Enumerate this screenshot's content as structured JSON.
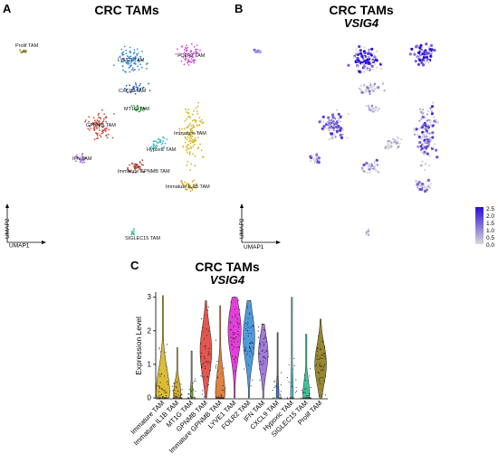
{
  "panels": {
    "A": {
      "letter": "A",
      "title": "CRC TAMs",
      "axis_x": "UMAP1",
      "axis_y": "UMAP2",
      "clusters": [
        {
          "name": "Prolif TAM",
          "color": "#8b7a1a"
        },
        {
          "name": "LYVE1 TAM",
          "color": "#3b8fd6"
        },
        {
          "name": "FOLR2 TAM",
          "color": "#d056d6"
        },
        {
          "name": "CXCL9 TAM",
          "color": "#2b63b5"
        },
        {
          "name": "MT1G TAM",
          "color": "#2bb03a"
        },
        {
          "name": "GPNMB TAM",
          "color": "#cf4a3f"
        },
        {
          "name": "Immature TAM",
          "color": "#d7b520"
        },
        {
          "name": "Hypoxic TAM",
          "color": "#3fb8c7"
        },
        {
          "name": "IFN TAM",
          "color": "#9a6cd8"
        },
        {
          "name": "Immature GPNMB TAM",
          "color": "#a8412f"
        },
        {
          "name": "Immature IL1B TAM",
          "color": "#d0a51a"
        },
        {
          "name": "SIGLEC15 TAM",
          "color": "#2bbd8e"
        }
      ]
    },
    "B": {
      "letter": "B",
      "title": "CRC TAMs",
      "subtitle": "VSIG4",
      "axis_x": "UMAP1",
      "axis_y": "UMAP2",
      "colorbar_ticks": [
        "2.5",
        "2.0",
        "1.5",
        "1.0",
        "0.5",
        "0.0"
      ],
      "colors": {
        "low": "#d9d9d9",
        "high": "#2a0bd9"
      }
    },
    "C": {
      "letter": "C",
      "title": "CRC TAMs",
      "subtitle": "VSIG4"
    }
  },
  "chart_data": [
    {
      "type": "scatter",
      "panel": "A",
      "title": "CRC TAMs",
      "xlabel": "UMAP1",
      "ylabel": "UMAP2",
      "series": [
        {
          "name": "Prolif TAM",
          "x": [
            -13.5,
            -13,
            -12.4,
            -12,
            -13.2
          ],
          "y": [
            9.2,
            9.6,
            9.1,
            9.4,
            8.8
          ]
        },
        {
          "name": "LYVE1 TAM",
          "x": [
            -3.5,
            -2.8,
            -2,
            -1.2,
            -3.2
          ],
          "y": [
            9,
            9.8,
            8.6,
            9.3,
            7.9
          ]
        },
        {
          "name": "FOLR2 TAM",
          "x": [
            0.5,
            1.2,
            2,
            2.4,
            1.5
          ],
          "y": [
            9.5,
            10.2,
            9,
            9.6,
            8.4
          ]
        },
        {
          "name": "CXCL9 TAM",
          "x": [
            -2.5,
            -1.8,
            -1,
            -2.2
          ],
          "y": [
            6.5,
            7.1,
            6.3,
            5.9
          ]
        },
        {
          "name": "MT1G TAM",
          "x": [
            -2.6,
            -2,
            -1.5
          ],
          "y": [
            4.6,
            5.1,
            4.3
          ]
        },
        {
          "name": "GPNMB TAM",
          "x": [
            -6,
            -5.3,
            -4.6,
            -5.6,
            -4.9
          ],
          "y": [
            3.4,
            4.2,
            2.8,
            1.8,
            3.6
          ]
        },
        {
          "name": "Immature TAM",
          "x": [
            1.5,
            2.2,
            3,
            2.6,
            1.8
          ],
          "y": [
            5,
            3.2,
            2,
            0.5,
            -0.8
          ]
        },
        {
          "name": "Hypoxic TAM",
          "x": [
            -1.2,
            -0.4,
            0.2
          ],
          "y": [
            2.2,
            1.6,
            2.6
          ]
        },
        {
          "name": "IFN TAM",
          "x": [
            -6.2,
            -5.7
          ],
          "y": [
            0.8,
            1.3
          ]
        },
        {
          "name": "Immature GPNMB TAM",
          "x": [
            -3.2,
            -2.4,
            -1.8
          ],
          "y": [
            0.2,
            -0.4,
            0.5
          ]
        },
        {
          "name": "Immature IL1B TAM",
          "x": [
            1.2,
            1.8,
            2.3
          ],
          "y": [
            -1.5,
            -2.2,
            -1.2
          ]
        },
        {
          "name": "SIGLEC15 TAM",
          "x": [
            -1.2,
            -1
          ],
          "y": [
            -7.5,
            -8
          ]
        }
      ]
    },
    {
      "type": "scatter",
      "panel": "B",
      "title": "CRC TAMs",
      "subtitle": "VSIG4",
      "xlabel": "UMAP1",
      "ylabel": "UMAP2",
      "color_scale": {
        "min": 0.0,
        "max": 2.5,
        "ticks": [
          0.0,
          0.5,
          1.0,
          1.5,
          2.0,
          2.5
        ]
      }
    },
    {
      "type": "violin",
      "panel": "C",
      "title": "CRC TAMs",
      "subtitle": "VSIG4",
      "ylabel": "Expression Level",
      "ylim": [
        0,
        3.1
      ],
      "yticks": [
        0,
        1,
        2,
        3
      ],
      "categories": [
        "Immature TAM",
        "Immature IL1B TAM",
        "MT1G TAM",
        "GPNMB TAM",
        "Immature GPNMB TAM",
        "LYVE1 TAM",
        "FOLR2 TAM",
        "IFN TAM",
        "CXCL9 TAM",
        "Hypoxic TAM",
        "SIGLEC15 TAM",
        "Prolif TAM"
      ],
      "colors": [
        "#d7b520",
        "#c9a21c",
        "#5a9e2f",
        "#e0453c",
        "#d9742a",
        "#e02ad6",
        "#3b8fd6",
        "#9a6cd8",
        "#2b63b5",
        "#3fb8c7",
        "#2bbd8e",
        "#8b7a1a"
      ],
      "max_values": [
        3.05,
        1.5,
        1.4,
        2.9,
        2.75,
        3.0,
        2.9,
        2.2,
        1.95,
        3.0,
        1.9,
        2.35
      ],
      "peak_density_at": [
        0.1,
        0.1,
        0.05,
        1.4,
        0.1,
        2.0,
        1.8,
        1.3,
        0.05,
        0.05,
        0.05,
        1.0
      ],
      "widths": [
        1.0,
        0.55,
        0.2,
        0.85,
        0.7,
        0.95,
        0.85,
        0.7,
        0.2,
        0.2,
        0.5,
        0.85
      ]
    }
  ]
}
